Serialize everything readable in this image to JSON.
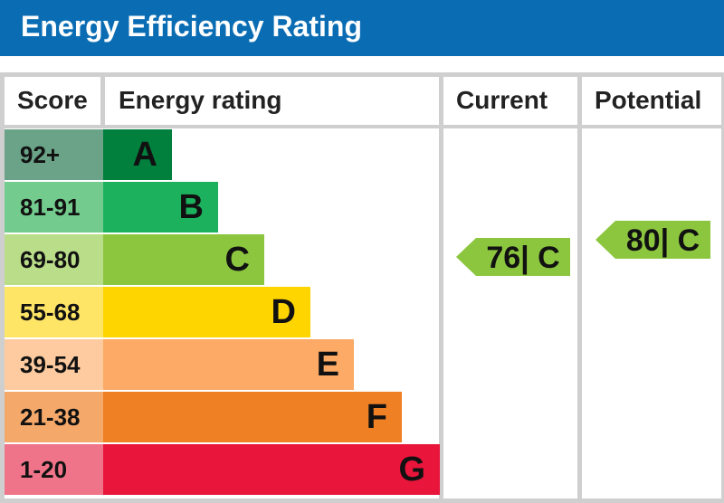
{
  "header": {
    "title": "Energy Efficiency Rating",
    "background": "#0a6db4"
  },
  "columns": {
    "score": "Score",
    "rating": "Energy rating",
    "current": "Current",
    "potential": "Potential"
  },
  "chart_data": {
    "type": "bar",
    "title": "Energy Efficiency Rating",
    "bands": [
      {
        "letter": "A",
        "score": "92+",
        "color": "#007f3d",
        "score_color": "#6aa387"
      },
      {
        "letter": "B",
        "score": "81-91",
        "color": "#1cb25d",
        "score_color": "#73cc8d"
      },
      {
        "letter": "C",
        "score": "69-80",
        "color": "#8cc63f",
        "score_color": "#badd89"
      },
      {
        "letter": "D",
        "score": "55-68",
        "color": "#ffd500",
        "score_color": "#ffe566"
      },
      {
        "letter": "E",
        "score": "39-54",
        "color": "#fcaa65",
        "score_color": "#fdcb9f"
      },
      {
        "letter": "F",
        "score": "21-38",
        "color": "#ef8023",
        "score_color": "#f4a86a"
      },
      {
        "letter": "G",
        "score": "1-20",
        "color": "#e9153b",
        "score_color": "#f07489"
      }
    ],
    "current": {
      "value": 76,
      "band": "C",
      "label": "76| C",
      "color": "#8cc63f"
    },
    "potential": {
      "value": 80,
      "band": "C",
      "label": "80| C",
      "color": "#8cc63f"
    }
  }
}
